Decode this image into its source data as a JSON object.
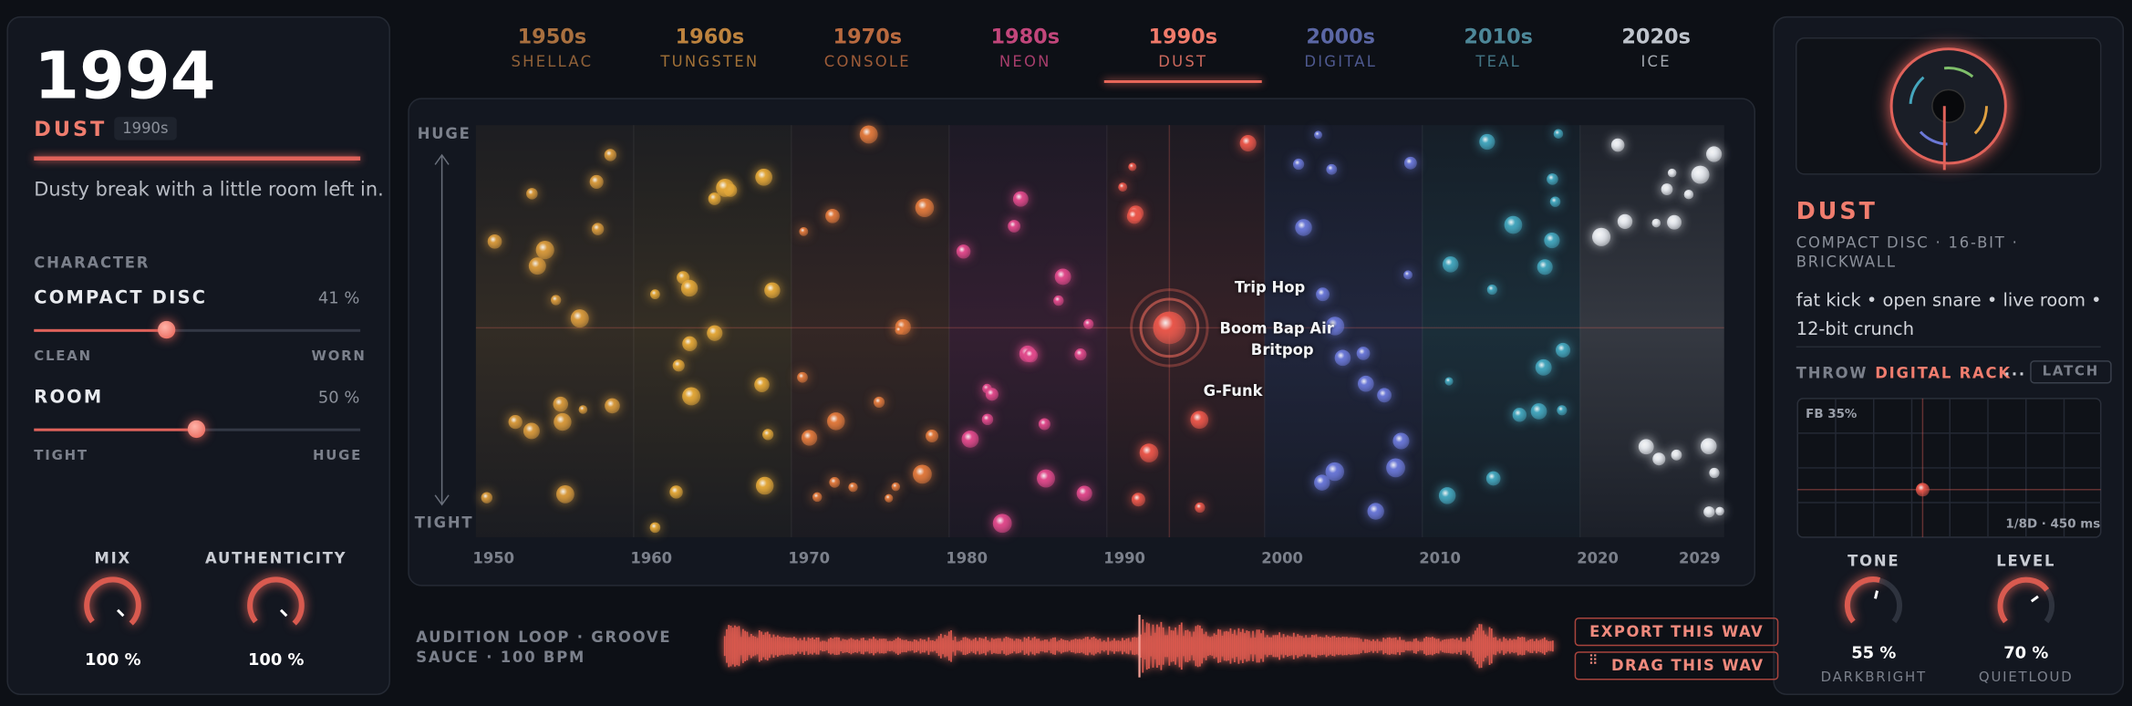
{
  "header": {
    "year": "1994",
    "preset": "DUST",
    "era": "1990s",
    "description": "Dusty break with a little room left in."
  },
  "character": {
    "label": "CHARACTER",
    "source": {
      "name": "COMPACT DISC",
      "value": "41 %",
      "min": "CLEAN",
      "max": "WORN"
    },
    "room": {
      "name": "ROOM",
      "value": "50 %",
      "min": "TIGHT",
      "max": "HUGE"
    }
  },
  "knobs_left": [
    {
      "label": "MIX",
      "value": "100 %"
    },
    {
      "label": "AUTHENTICITY",
      "value": "100 %"
    }
  ],
  "tabs": [
    {
      "year": "1950s",
      "name": "SHELLAC"
    },
    {
      "year": "1960s",
      "name": "TUNGSTEN"
    },
    {
      "year": "1970s",
      "name": "CONSOLE"
    },
    {
      "year": "1980s",
      "name": "NEON"
    },
    {
      "year": "1990s",
      "name": "DUST"
    },
    {
      "year": "2000s",
      "name": "DIGITAL"
    },
    {
      "year": "2010s",
      "name": "TEAL"
    },
    {
      "year": "2020s",
      "name": "ICE"
    }
  ],
  "map": {
    "y_top": "HUGE",
    "y_bottom": "TIGHT",
    "x_labels": [
      "1950",
      "1960",
      "1970",
      "1980",
      "1990",
      "2000",
      "2010",
      "2020",
      "2029"
    ],
    "labels": [
      "Trip Hop",
      "Boom Bap Air",
      "Britpop",
      "G-Funk"
    ]
  },
  "audition": {
    "text": "AUDITION LOOP · GROOVE SAUCE · 100 BPM",
    "export": "EXPORT THIS WAV",
    "drag": "DRAG THIS WAV"
  },
  "detail": {
    "title": "DUST",
    "specs": "COMPACT DISC · 16-BIT · BRICKWALL",
    "tags": "fat kick • open snare • live room • 12-bit crunch",
    "throw": {
      "label": "THROW",
      "value": "DIGITAL RACK",
      "more": "...",
      "latch": "LATCH",
      "fb": "FB 35%",
      "time": "1/8D · 450 ms"
    },
    "knobs": [
      {
        "label": "TONE",
        "value": "55 %",
        "range": "DARKBRIGHT"
      },
      {
        "label": "LEVEL",
        "value": "70 %",
        "range": "QUIETLOUD"
      }
    ]
  }
}
